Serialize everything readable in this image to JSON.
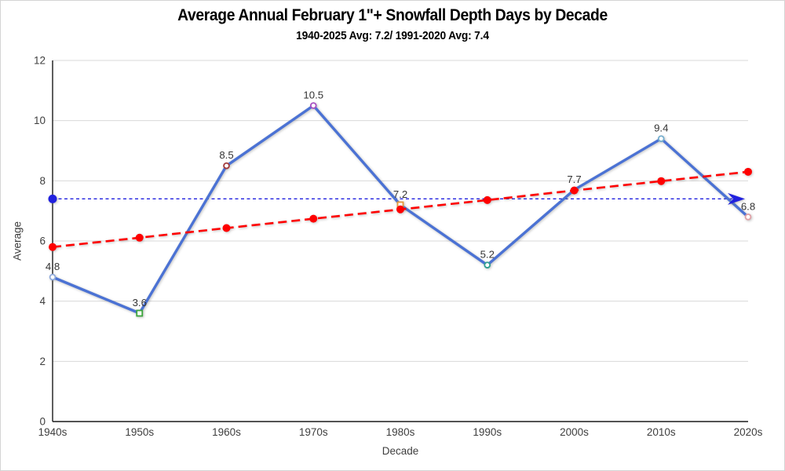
{
  "chart_data": {
    "type": "line",
    "title": "Average Annual February 1\"+ Snowfall Depth Days by Decade",
    "subtitle": "1940-2025 Avg: 7.2/ 1991-2020 Avg: 7.4",
    "xlabel": "Decade",
    "ylabel": "Average",
    "categories": [
      "1940s",
      "1950s",
      "1960s",
      "1970s",
      "1980s",
      "1990s",
      "2000s",
      "2010s",
      "2020s"
    ],
    "ylim": [
      0,
      12
    ],
    "yticks": [
      0,
      2,
      4,
      6,
      8,
      10,
      12
    ],
    "grid": "horizontal",
    "legend": "none",
    "colors": {
      "grid": "#d9d9d9",
      "axis": "#1a1a1a",
      "tick_text": "#3e3e3e",
      "label_text": "#333333"
    },
    "series": [
      {
        "name": "Decade average snowfall depth days",
        "values": [
          4.8,
          3.6,
          8.5,
          10.5,
          7.2,
          5.2,
          7.7,
          9.4,
          6.8
        ],
        "labels": [
          "4.8",
          "3.6",
          "8.5",
          "10.5",
          "7.2",
          "5.2",
          "7.7",
          "9.4",
          "6.8"
        ],
        "color": "#4b72d4",
        "style": "solid",
        "width": 3.4,
        "data_labels": true,
        "point_markers": [
          {
            "shape": "circle",
            "color": "#8faadc"
          },
          {
            "shape": "square",
            "color": "#3da53d"
          },
          {
            "shape": "circle",
            "color": "#a33a3a"
          },
          {
            "shape": "circle",
            "color": "#a94fc2"
          },
          {
            "shape": "square",
            "color": "#e69a39"
          },
          {
            "shape": "circle",
            "color": "#2f9e8f"
          },
          {
            "shape": "none",
            "color": ""
          },
          {
            "shape": "circle",
            "color": "#74aece"
          },
          {
            "shape": "circle",
            "color": "#dfa0a6"
          }
        ]
      },
      {
        "name": "Linear trend",
        "values": [
          5.8,
          6.11,
          6.43,
          6.74,
          7.05,
          7.36,
          7.68,
          7.99,
          8.3
        ],
        "color": "#fe0000",
        "style": "dashed",
        "dash": "11,6",
        "width": 2.6,
        "dot_radius": 5,
        "data_labels": false
      }
    ],
    "reference_line": {
      "name": "1991-2020 average",
      "value": 7.4,
      "color": "#2121df",
      "style": "dashed",
      "dash": "4,3.5",
      "width": 1.4,
      "start_marker": "dot",
      "end_marker": "arrow"
    }
  }
}
